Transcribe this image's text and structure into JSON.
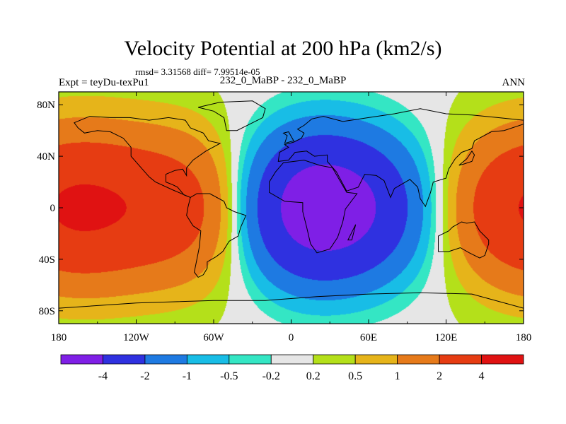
{
  "header": {
    "title": "Velocity Potential at 200 hPa (km2/s)",
    "stats": "rmsd= 3.31568 diff= 7.99514e-05",
    "experiment": "Expt = teyDu-texPu1",
    "cases": "232_0_MaBP - 232_0_MaBP",
    "season": "ANN"
  },
  "chart_data": {
    "type": "heatmap",
    "title": "Velocity Potential at 200 hPa (km2/s)",
    "subtitle": "232_0_MaBP - 232_0_MaBP",
    "xlabel": "",
    "ylabel": "",
    "units": "km2/s",
    "xlim": [
      -180,
      180
    ],
    "ylim": [
      -90,
      90
    ],
    "x_ticks": [
      -180,
      -120,
      -60,
      0,
      60,
      120,
      180
    ],
    "x_tick_labels": [
      "180",
      "120W",
      "60W",
      "0",
      "60E",
      "120E",
      "180"
    ],
    "y_ticks": [
      80,
      40,
      0,
      -40,
      -80
    ],
    "y_tick_labels": [
      "80N",
      "40N",
      "0",
      "40S",
      "80S"
    ],
    "colorbar": {
      "levels": [
        -4,
        -2,
        -1,
        -0.5,
        -0.2,
        0.2,
        0.5,
        1,
        2,
        4
      ],
      "labels": [
        "-4",
        "-2",
        "-1",
        "-0.5",
        "-0.2",
        "0.2",
        "0.5",
        "1",
        "2",
        "4"
      ],
      "colors": [
        "#7f1fe6",
        "#2f31e0",
        "#1e7ae2",
        "#18bde6",
        "#34e6c4",
        "#e6e6e6",
        "#b4e01a",
        "#e6b41a",
        "#e67a1a",
        "#e63c12",
        "#e01212"
      ]
    },
    "field": {
      "description_units": "km2/s",
      "centers": [
        {
          "name": "minimum",
          "lon": 30,
          "lat": 5,
          "value": -4.5
        },
        {
          "name": "maximum-west",
          "lon": -160,
          "lat": 5,
          "value": 4.5
        },
        {
          "name": "maximum-east",
          "lon": 170,
          "lat": 0,
          "value": 4.5
        }
      ]
    },
    "grid": false,
    "colorbar_position": "bottom"
  }
}
